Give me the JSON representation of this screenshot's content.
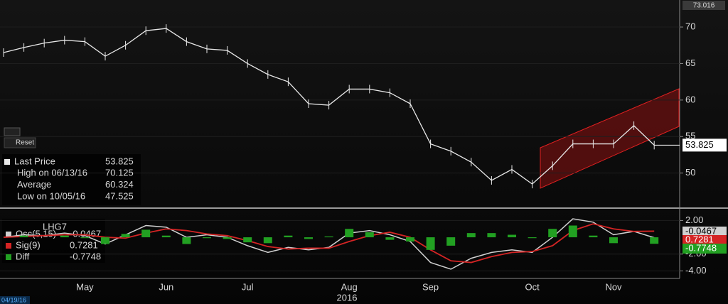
{
  "ui": {
    "reset": "Reset"
  },
  "chart_data": [
    {
      "type": "line",
      "top_label": "73.016",
      "series": [
        {
          "name": "Last Price",
          "color": "#e8e8e8",
          "values": [
            66.5,
            67.2,
            67.8,
            68.2,
            68.0,
            66.0,
            67.5,
            69.5,
            69.8,
            68.0,
            67.0,
            66.8,
            65.0,
            63.5,
            62.5,
            59.5,
            59.3,
            61.5,
            61.5,
            61.0,
            59.5,
            54.0,
            53.0,
            51.5,
            49.0,
            50.5,
            48.5,
            51.0,
            54.0,
            54.0,
            54.0,
            56.5,
            53.825
          ]
        }
      ],
      "stats": [
        {
          "label": "High on 06/13/16",
          "value": 70.125
        },
        {
          "label": "Average",
          "value": 60.324
        },
        {
          "label": "Low on 10/05/16",
          "value": 47.525
        }
      ],
      "ylim": [
        45.3,
        73.7
      ],
      "yticks": [
        50,
        55,
        60,
        65,
        70
      ],
      "grid": true
    },
    {
      "type": "macd",
      "title": "LHG7",
      "x_label": "2016",
      "start_date": "04/19/16",
      "categories": [
        null,
        null,
        null,
        null,
        "May",
        null,
        null,
        null,
        "Jun",
        null,
        null,
        null,
        "Jul",
        null,
        null,
        null,
        null,
        "Aug",
        null,
        null,
        null,
        "Sep",
        null,
        null,
        null,
        null,
        "Oct",
        null,
        null,
        null,
        "Nov",
        null,
        null
      ],
      "series": [
        {
          "name": "Osc(5,15)",
          "color": "#d0d0d0",
          "values": [
            0,
            0.3,
            0.2,
            0.5,
            0.2,
            -0.8,
            0.3,
            1.4,
            1.2,
            0,
            0.3,
            0,
            -1.0,
            -1.8,
            -1.2,
            -1.5,
            -1.2,
            0.5,
            0.8,
            0.3,
            -0.5,
            -3.0,
            -3.8,
            -2.5,
            -1.8,
            -1.5,
            -1.8,
            0,
            2.2,
            1.8,
            0.3,
            0.7,
            -0.0467
          ]
        },
        {
          "name": "Sig(9)",
          "color": "#d42424",
          "values": [
            0,
            0.1,
            0.2,
            0.3,
            0.3,
            0,
            -0.1,
            0.5,
            1.0,
            0.8,
            0.4,
            0.2,
            -0.4,
            -1.1,
            -1.4,
            -1.3,
            -1.3,
            -0.5,
            0.2,
            0.6,
            0,
            -1.5,
            -2.8,
            -3.0,
            -2.3,
            -1.8,
            -1.7,
            -1.0,
            0.8,
            1.6,
            1.0,
            0.7,
            0.7281
          ]
        },
        {
          "name": "Diff",
          "color": "#22a022",
          "values": [
            0,
            0.2,
            0,
            0.2,
            -0.1,
            -0.8,
            0.4,
            0.9,
            0.2,
            -0.8,
            -0.1,
            -0.2,
            -0.6,
            -0.7,
            0.2,
            -0.2,
            0.1,
            1.0,
            0.6,
            -0.3,
            -0.5,
            -1.5,
            -1.0,
            0.5,
            0.5,
            0.3,
            -0.1,
            1.0,
            1.4,
            0.2,
            -0.7,
            0,
            -0.7748
          ]
        }
      ],
      "ylim": [
        -4.9,
        3.22
      ],
      "yticks": [
        {
          "value": 2,
          "label": "2.00"
        },
        {
          "value": -2,
          "label": "-2.00"
        },
        {
          "value": -4,
          "label": "-4.00"
        }
      ],
      "grid": true
    }
  ]
}
